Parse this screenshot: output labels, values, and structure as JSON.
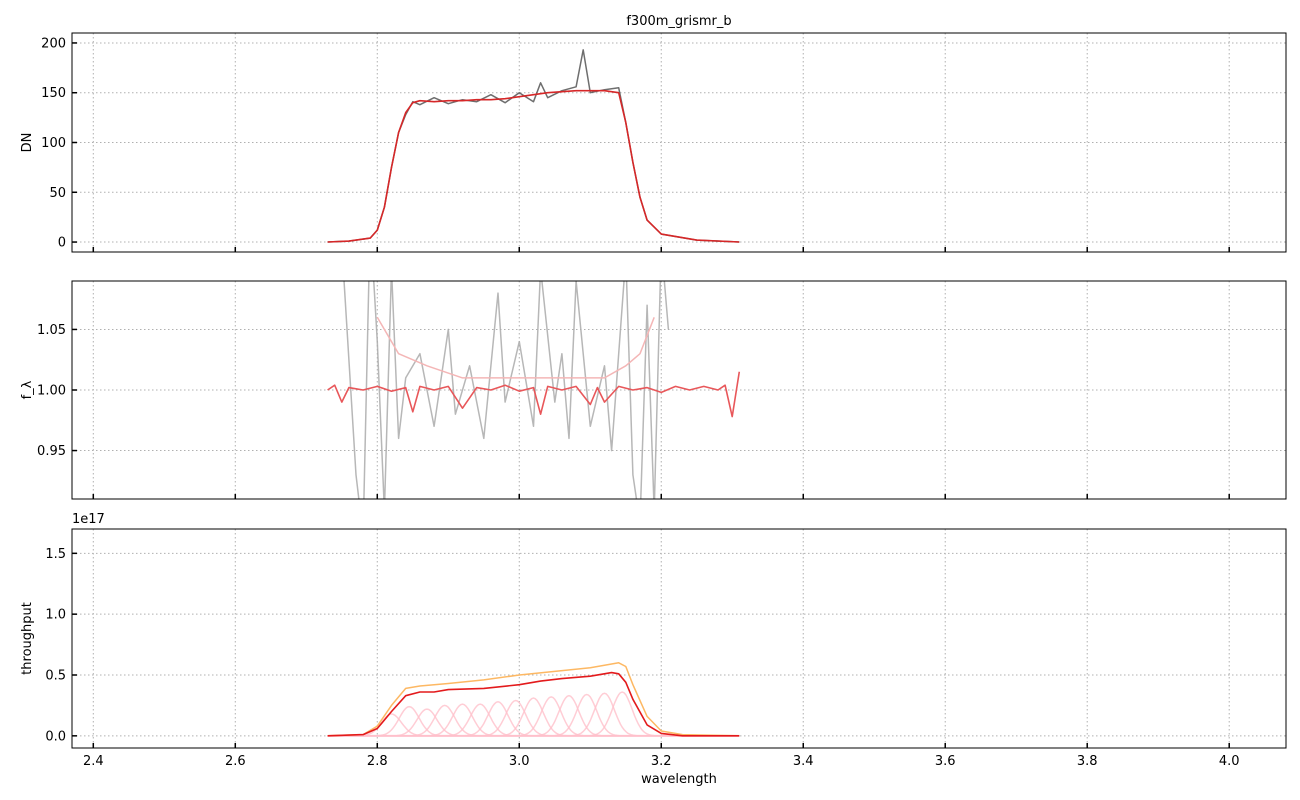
{
  "title": "f300m_grismr_b",
  "chart_data": [
    {
      "type": "line",
      "ylabel": "DN",
      "xlim": [
        2.37,
        4.08
      ],
      "ylim": [
        -10,
        210
      ],
      "yticks": [
        0,
        50,
        100,
        150,
        200
      ],
      "ytick_labels": [
        "0",
        "50",
        "100",
        "150",
        "200"
      ],
      "grid": true,
      "series": [
        {
          "role": "data-gray",
          "color": "#555555",
          "x": [
            2.73,
            2.76,
            2.79,
            2.8,
            2.81,
            2.82,
            2.83,
            2.84,
            2.85,
            2.86,
            2.88,
            2.9,
            2.92,
            2.94,
            2.96,
            2.98,
            3.0,
            3.02,
            3.03,
            3.04,
            3.06,
            3.08,
            3.09,
            3.1,
            3.12,
            3.14,
            3.15,
            3.16,
            3.17,
            3.18,
            3.2,
            3.25,
            3.31
          ],
          "y": [
            0,
            1,
            4,
            12,
            35,
            75,
            110,
            128,
            141,
            138,
            145,
            139,
            143,
            141,
            148,
            140,
            150,
            141,
            160,
            145,
            152,
            156,
            193,
            150,
            153,
            155,
            120,
            80,
            45,
            22,
            8,
            2,
            0
          ]
        },
        {
          "role": "model",
          "color": "#d62728",
          "x": [
            2.73,
            2.76,
            2.79,
            2.8,
            2.81,
            2.82,
            2.83,
            2.84,
            2.85,
            2.86,
            2.88,
            2.9,
            2.92,
            2.94,
            2.96,
            2.98,
            3.0,
            3.02,
            3.04,
            3.06,
            3.08,
            3.1,
            3.12,
            3.14,
            3.15,
            3.16,
            3.17,
            3.18,
            3.2,
            3.25,
            3.31
          ],
          "y": [
            0,
            1,
            4,
            12,
            35,
            75,
            110,
            130,
            140,
            142,
            141,
            142,
            142,
            143,
            143,
            144,
            146,
            148,
            150,
            151,
            152,
            152,
            152,
            150,
            120,
            80,
            45,
            22,
            8,
            2,
            0
          ]
        }
      ]
    },
    {
      "type": "line",
      "ylabel": "f_λ",
      "xlim": [
        2.37,
        4.08
      ],
      "ylim": [
        0.91,
        1.09
      ],
      "yticks": [
        0.95,
        1.0,
        1.05
      ],
      "ytick_labels": [
        "0.95",
        "1.00",
        "1.05"
      ],
      "grid": true,
      "series": [
        {
          "role": "data-gray",
          "color": "#aaaaaa",
          "x": [
            2.75,
            2.77,
            2.78,
            2.79,
            2.8,
            2.81,
            2.82,
            2.83,
            2.84,
            2.86,
            2.88,
            2.9,
            2.91,
            2.93,
            2.95,
            2.97,
            2.98,
            3.0,
            3.02,
            3.03,
            3.05,
            3.06,
            3.07,
            3.08,
            3.1,
            3.12,
            3.13,
            3.15,
            3.16,
            3.17,
            3.18,
            3.19,
            3.2,
            3.21
          ],
          "y": [
            1.12,
            0.93,
            0.88,
            1.14,
            1.04,
            0.9,
            1.1,
            0.96,
            1.01,
            1.03,
            0.97,
            1.05,
            0.98,
            1.02,
            0.96,
            1.08,
            0.99,
            1.04,
            0.97,
            1.1,
            0.99,
            1.03,
            0.96,
            1.09,
            0.97,
            1.02,
            0.95,
            1.11,
            0.93,
            0.89,
            1.07,
            0.9,
            1.12,
            1.05
          ]
        },
        {
          "role": "smooth-light",
          "color": "#f4b6b6",
          "x": [
            2.8,
            2.83,
            2.87,
            2.92,
            3.0,
            3.08,
            3.12,
            3.15,
            3.17,
            3.19
          ],
          "y": [
            1.06,
            1.03,
            1.02,
            1.01,
            1.01,
            1.01,
            1.01,
            1.02,
            1.03,
            1.06
          ]
        },
        {
          "role": "model",
          "color": "#e8575a",
          "x": [
            2.73,
            2.74,
            2.75,
            2.76,
            2.77,
            2.78,
            2.8,
            2.82,
            2.84,
            2.85,
            2.86,
            2.88,
            2.9,
            2.92,
            2.94,
            2.96,
            2.98,
            3.0,
            3.02,
            3.03,
            3.04,
            3.06,
            3.08,
            3.1,
            3.11,
            3.12,
            3.14,
            3.16,
            3.18,
            3.2,
            3.22,
            3.24,
            3.26,
            3.28,
            3.29,
            3.3,
            3.31
          ],
          "y": [
            1.0,
            1.004,
            0.99,
            1.002,
            1.001,
            1.0,
            1.003,
            0.999,
            1.002,
            0.982,
            1.003,
            1.0,
            1.003,
            0.985,
            1.002,
            1.0,
            1.004,
            0.999,
            1.002,
            0.98,
            1.003,
            1.0,
            1.003,
            0.988,
            1.002,
            0.99,
            1.003,
            1.0,
            1.002,
            0.998,
            1.003,
            1.0,
            1.003,
            1.0,
            1.004,
            0.978,
            1.015
          ]
        }
      ]
    },
    {
      "type": "line",
      "ylabel": "throughput",
      "xlabel": "wavelength",
      "offset_label": "1e17",
      "xlim": [
        2.37,
        4.08
      ],
      "ylim": [
        -0.1,
        1.7
      ],
      "xticks": [
        2.4,
        2.6,
        2.8,
        3.0,
        3.2,
        3.4,
        3.6,
        3.8,
        4.0
      ],
      "xtick_labels": [
        "2.4",
        "2.6",
        "2.8",
        "3.0",
        "3.2",
        "3.4",
        "3.6",
        "3.8",
        "4.0"
      ],
      "yticks": [
        0.0,
        0.5,
        1.0,
        1.5
      ],
      "ytick_labels": [
        "0.0",
        "0.5",
        "1.0",
        "1.5"
      ],
      "grid": true,
      "series": [
        {
          "role": "total-orange",
          "color": "#fdb863",
          "x": [
            2.73,
            2.78,
            2.8,
            2.82,
            2.84,
            2.86,
            2.9,
            2.95,
            3.0,
            3.05,
            3.1,
            3.14,
            3.15,
            3.16,
            3.18,
            3.2,
            3.23,
            3.31
          ],
          "y": [
            0,
            0.01,
            0.08,
            0.25,
            0.39,
            0.41,
            0.43,
            0.46,
            0.5,
            0.53,
            0.56,
            0.6,
            0.57,
            0.42,
            0.16,
            0.04,
            0.01,
            0
          ]
        },
        {
          "role": "model-red",
          "color": "#e31a1c",
          "x": [
            2.73,
            2.78,
            2.8,
            2.82,
            2.84,
            2.86,
            2.88,
            2.9,
            2.95,
            3.0,
            3.03,
            3.06,
            3.1,
            3.13,
            3.14,
            3.15,
            3.16,
            3.18,
            3.2,
            3.23,
            3.31
          ],
          "y": [
            0,
            0.01,
            0.06,
            0.2,
            0.33,
            0.36,
            0.36,
            0.38,
            0.39,
            0.42,
            0.45,
            0.47,
            0.49,
            0.52,
            0.51,
            0.44,
            0.3,
            0.09,
            0.02,
            0,
            0
          ]
        }
      ],
      "components": {
        "color": "#ffc0cb",
        "centers": [
          2.82,
          2.845,
          2.87,
          2.895,
          2.92,
          2.945,
          2.97,
          2.995,
          3.02,
          3.045,
          3.07,
          3.095,
          3.12,
          3.145
        ],
        "peaks": [
          0.18,
          0.24,
          0.22,
          0.25,
          0.26,
          0.26,
          0.28,
          0.29,
          0.31,
          0.32,
          0.33,
          0.34,
          0.35,
          0.36
        ],
        "sigma": 0.014
      }
    }
  ]
}
